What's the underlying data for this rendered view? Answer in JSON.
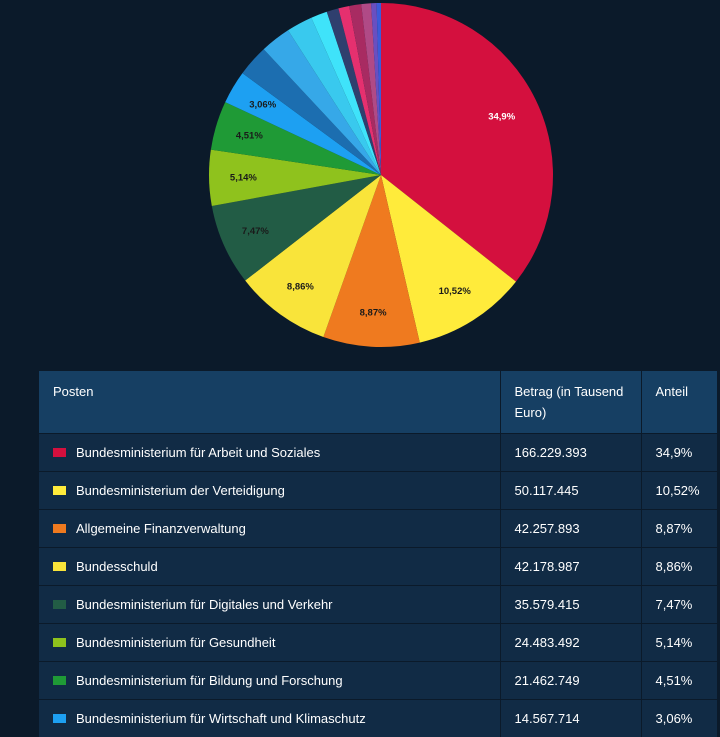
{
  "chart_data": {
    "type": "pie",
    "slices": [
      {
        "label": "Bundesministerium für Arbeit und Soziales",
        "value": 34.9,
        "display": "34,9%",
        "color": "#d4103e"
      },
      {
        "label": "Bundesministerium der Verteidigung",
        "value": 10.52,
        "display": "10,52%",
        "color": "#ffeb3b"
      },
      {
        "label": "Allgemeine Finanzverwaltung",
        "value": 8.87,
        "display": "8,87%",
        "color": "#ef7a1f"
      },
      {
        "label": "Bundesschuld",
        "value": 8.86,
        "display": "8,86%",
        "color": "#f9e43a"
      },
      {
        "label": "Bundesministerium für Digitales und Verkehr",
        "value": 7.47,
        "display": "7,47%",
        "color": "#225c45"
      },
      {
        "label": "Bundesministerium für Gesundheit",
        "value": 5.14,
        "display": "5,14%",
        "color": "#8fc21d"
      },
      {
        "label": "Bundesministerium für Bildung und Forschung",
        "value": 4.51,
        "display": "4,51%",
        "color": "#1f9a36"
      },
      {
        "label": "Bundesministerium für Wirtschaft und Klimaschutz",
        "value": 3.06,
        "display": "3,06%",
        "color": "#1da0f2"
      },
      {
        "label": "",
        "value": 2.9,
        "display": "",
        "color": "#1c6eb0"
      },
      {
        "label": "",
        "value": 2.8,
        "display": "",
        "color": "#36a8e8"
      },
      {
        "label": "",
        "value": 2.4,
        "display": "",
        "color": "#39c9ee"
      },
      {
        "label": "",
        "value": 1.5,
        "display": "",
        "color": "#3fe3fa"
      },
      {
        "label": "",
        "value": 1.1,
        "display": "",
        "color": "#2f3f6e"
      },
      {
        "label": "",
        "value": 1.0,
        "display": "",
        "color": "#e5306f"
      },
      {
        "label": "",
        "value": 1.1,
        "display": "",
        "color": "#a82b62"
      },
      {
        "label": "",
        "value": 0.9,
        "display": "",
        "color": "#b04a86"
      },
      {
        "label": "",
        "value": 0.5,
        "display": "",
        "color": "#6a4fc0"
      },
      {
        "label": "",
        "value": 0.4,
        "display": "",
        "color": "#3b5bd9"
      }
    ]
  },
  "table": {
    "headers": {
      "posten": "Posten",
      "betrag": "Betrag (in Tausend Euro)",
      "anteil": "Anteil"
    },
    "rows": [
      {
        "name": "Bundesministerium für Arbeit und Soziales",
        "amount": "166.229.393",
        "share": "34,9%",
        "color": "#d4103e"
      },
      {
        "name": "Bundesministerium der Verteidigung",
        "amount": "50.117.445",
        "share": "10,52%",
        "color": "#ffeb3b"
      },
      {
        "name": "Allgemeine Finanzverwaltung",
        "amount": "42.257.893",
        "share": "8,87%",
        "color": "#ef7a1f"
      },
      {
        "name": "Bundesschuld",
        "amount": "42.178.987",
        "share": "8,86%",
        "color": "#f9e43a"
      },
      {
        "name": "Bundesministerium für Digitales und Verkehr",
        "amount": "35.579.415",
        "share": "7,47%",
        "color": "#225c45"
      },
      {
        "name": "Bundesministerium für Gesundheit",
        "amount": "24.483.492",
        "share": "5,14%",
        "color": "#8fc21d"
      },
      {
        "name": "Bundesministerium für Bildung und Forschung",
        "amount": "21.462.749",
        "share": "4,51%",
        "color": "#1f9a36"
      },
      {
        "name": "Bundesministerium für Wirtschaft und Klimaschutz",
        "amount": "14.567.714",
        "share": "3,06%",
        "color": "#1da0f2"
      }
    ]
  }
}
